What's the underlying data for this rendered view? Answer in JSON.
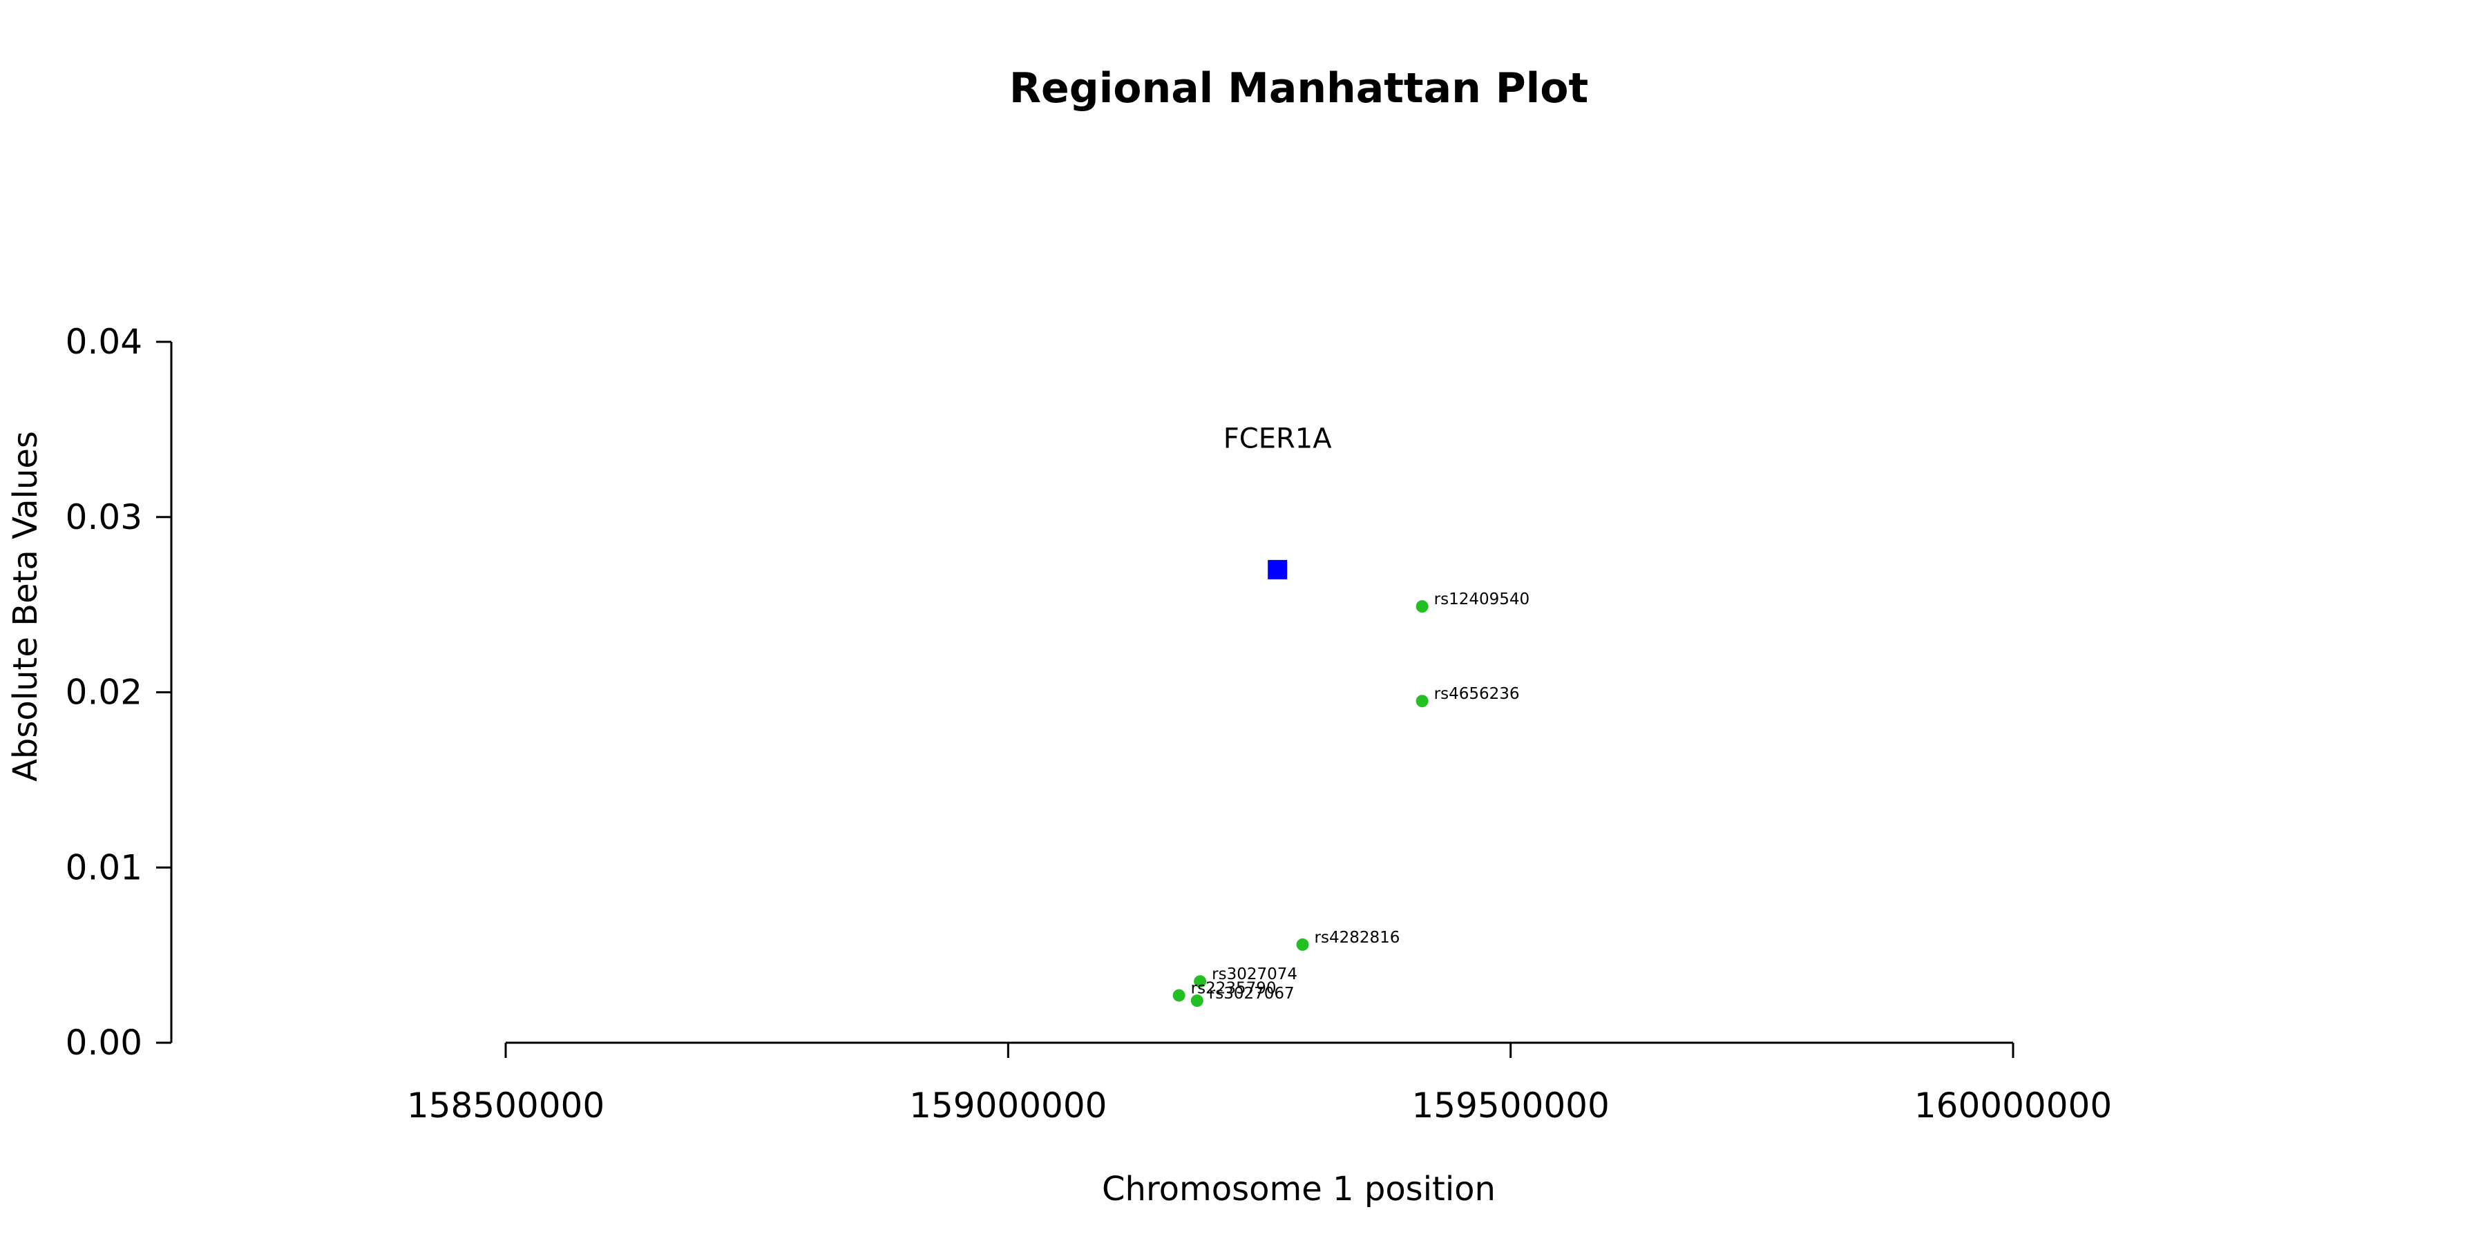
{
  "chart_data": {
    "type": "scatter",
    "title": "Regional Manhattan Plot",
    "xlabel": "Chromosome 1 position",
    "ylabel": "Absolute Beta Values",
    "xlim": [
      158500000,
      160000000
    ],
    "ylim": [
      0,
      0.04
    ],
    "x_ticks": [
      158500000,
      159000000,
      159500000,
      160000000
    ],
    "x_tick_labels": [
      "158500000",
      "159000000",
      "159500000",
      "160000000"
    ],
    "y_ticks": [
      0,
      0.01,
      0.02,
      0.03,
      0.04
    ],
    "y_tick_labels": [
      "0.00",
      "0.01",
      "0.02",
      "0.03",
      "0.04"
    ],
    "grid": false,
    "gene": {
      "name": "FCER1A",
      "x": 159268000,
      "y": 0.027,
      "label_y": 0.0345,
      "color": "#0000ff",
      "marker": "square"
    },
    "points": [
      {
        "label": "rs12409540",
        "x": 159412000,
        "y": 0.0249
      },
      {
        "label": "rs4656236",
        "x": 159412000,
        "y": 0.0195
      },
      {
        "label": "rs4282816",
        "x": 159293000,
        "y": 0.0056
      },
      {
        "label": "rs3027074",
        "x": 159191000,
        "y": 0.0035
      },
      {
        "label": "rs2235790",
        "x": 159170000,
        "y": 0.0027
      },
      {
        "label": "rs3027067",
        "x": 159188000,
        "y": 0.0024
      }
    ],
    "point_color": "#22c022",
    "point_marker": "circle"
  }
}
